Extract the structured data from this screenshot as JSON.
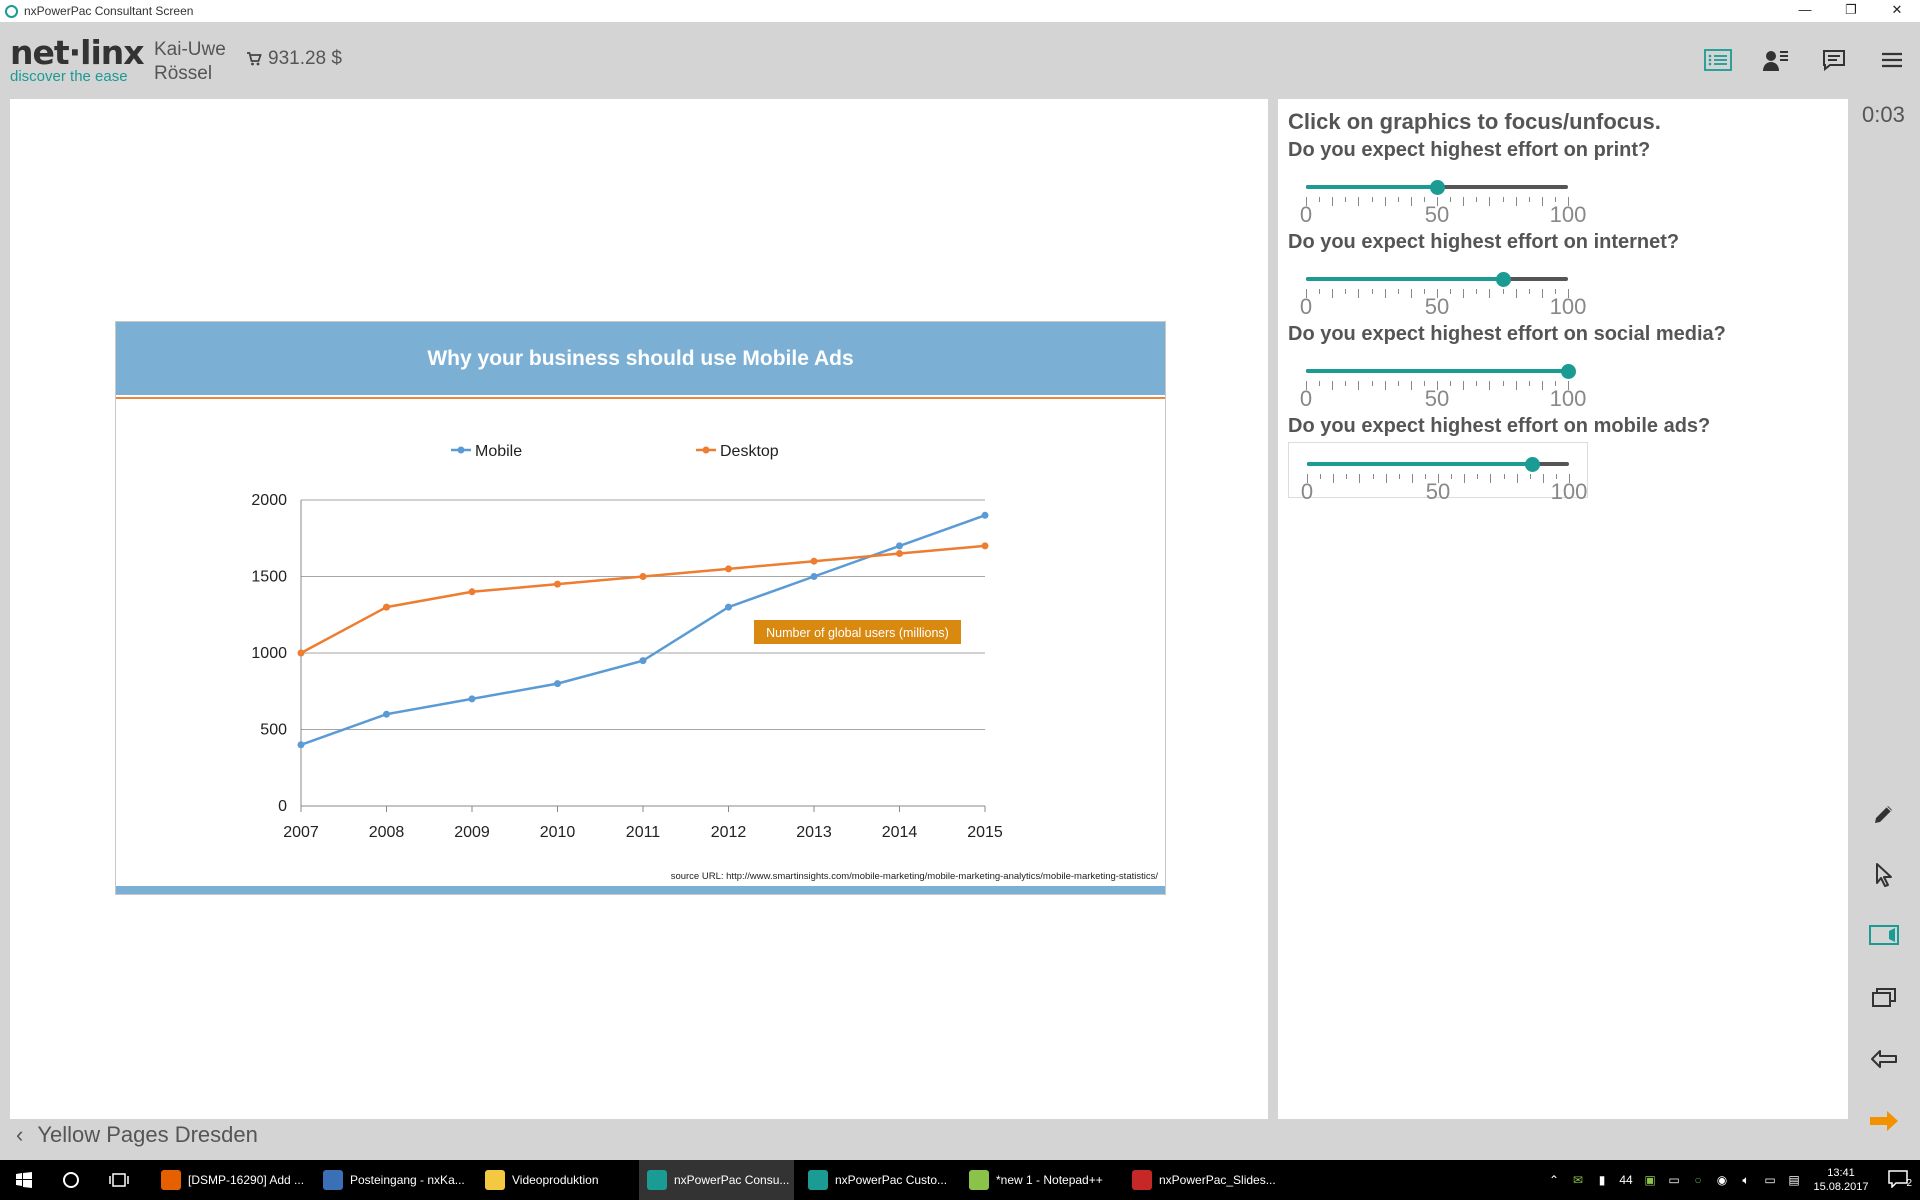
{
  "window": {
    "title": "nxPowerPac Consultant Screen",
    "controls": [
      "—",
      "❐",
      "✕"
    ]
  },
  "header": {
    "brand": "net·linx",
    "tagline": "discover the ease",
    "user_first": "Kai-Uwe",
    "user_last": "Rössel",
    "cart_amount": "931.28 $",
    "icons": [
      "agenda-list-icon",
      "users-list-icon",
      "chat-icon",
      "menu-icon"
    ]
  },
  "slide": {
    "title": "Why your business should use Mobile Ads",
    "source": "source URL: http://www.smartinsights.com/mobile-marketing/mobile-marketing-analytics/mobile-marketing-statistics/",
    "annotation": "Number of global users (millions)"
  },
  "chart_data": {
    "type": "line",
    "title": "Why your business should use Mobile Ads",
    "x": [
      2007,
      2008,
      2009,
      2010,
      2011,
      2012,
      2013,
      2014,
      2015
    ],
    "series": [
      {
        "name": "Mobile",
        "values": [
          400,
          600,
          700,
          800,
          950,
          1300,
          1500,
          1700,
          1900
        ],
        "color": "#5b9bd5"
      },
      {
        "name": "Desktop",
        "values": [
          1000,
          1300,
          1400,
          1450,
          1500,
          1550,
          1600,
          1650,
          1700
        ],
        "color": "#ed7d31"
      }
    ],
    "ylim": [
      0,
      2000
    ],
    "yticks": [
      0,
      500,
      1000,
      1500,
      2000
    ],
    "grid": true,
    "legend": "top",
    "annotation": "Number of global users (millions)"
  },
  "panel": {
    "title": "Click on graphics to focus/unfocus.",
    "questions": [
      {
        "label": "Do you expect highest effort on print?",
        "value": 50,
        "min": "0",
        "mid": "50",
        "max": "100"
      },
      {
        "label": "Do you expect highest effort on internet?",
        "value": 75,
        "min": "0",
        "mid": "50",
        "max": "100"
      },
      {
        "label": "Do you expect highest effort on social media?",
        "value": 100,
        "min": "0",
        "mid": "50",
        "max": "100"
      },
      {
        "label": "Do you expect highest effort on mobile ads?",
        "value": 86,
        "min": "0",
        "mid": "50",
        "max": "100"
      }
    ]
  },
  "rail": {
    "timer": "0:03",
    "tools": [
      "pen-icon",
      "pointer-icon",
      "camera-icon",
      "windows-icon",
      "back-arrow-icon",
      "next-arrow-icon"
    ]
  },
  "nav": {
    "back": "‹",
    "label": "Yellow Pages Dresden"
  },
  "taskbar": {
    "tasks": [
      {
        "label": "[DSMP-16290] Add ...",
        "color": "#e66000"
      },
      {
        "label": "Posteingang - nxKa...",
        "color": "#3b6fb6"
      },
      {
        "label": "Videoproduktion",
        "color": "#f5c842"
      },
      {
        "label": "nxPowerPac Consu...",
        "color": "#1a9b93",
        "active": true
      },
      {
        "label": "nxPowerPac Custo...",
        "color": "#1a9b93"
      },
      {
        "label": "*new 1 - Notepad++",
        "color": "#8bc34a"
      },
      {
        "label": "nxPowerPac_Slides...",
        "color": "#c62828"
      }
    ],
    "tray_count": "44",
    "time": "13:41",
    "date": "15.08.2017",
    "notifications": "2",
    "colors": {
      "accent": "#1a9b93",
      "orange": "#f39200"
    }
  }
}
